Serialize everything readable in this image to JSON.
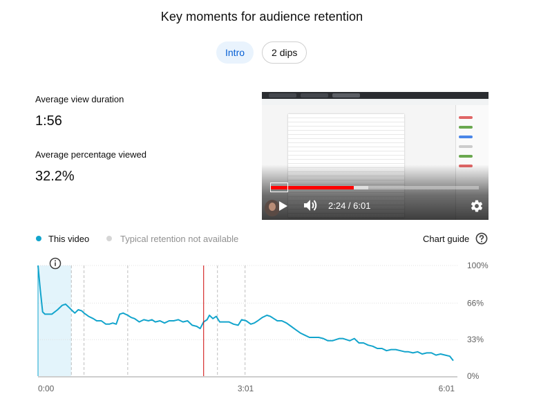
{
  "title": "Key moments for audience retention",
  "tabs": [
    {
      "label": "Intro",
      "active": true
    },
    {
      "label": "2 dips",
      "active": false
    }
  ],
  "metrics": [
    {
      "label": "Average view duration",
      "value": "1:56"
    },
    {
      "label": "Average percentage viewed",
      "value": "32.2%"
    }
  ],
  "video": {
    "time_display": "2:24 / 6:01",
    "progress_fraction": 0.4,
    "buffered_fraction": 0.47
  },
  "legend": {
    "this_video": "This video",
    "typical": "Typical retention not available",
    "this_video_color": "#12a4cc",
    "typical_color": "#d6d6d6"
  },
  "chart_guide": {
    "label": "Chart guide",
    "icon": "help-circle-icon"
  },
  "info_icon": "info-icon",
  "chart_data": {
    "type": "line",
    "xlabel": "",
    "ylabel": "",
    "x_ticks": [
      "0:00",
      "3:01",
      "6:01"
    ],
    "y_ticks": [
      "100%",
      "66%",
      "33%",
      "0%"
    ],
    "xlim": [
      0,
      361
    ],
    "ylim": [
      0,
      100
    ],
    "grid": true,
    "highlight_range_sec": [
      0,
      29
    ],
    "key_moment_markers_sec": [
      29,
      40,
      78,
      144,
      156,
      180
    ],
    "playhead_sec": 144,
    "series": [
      {
        "name": "This video",
        "color": "#12a4cc",
        "x": [
          0,
          2,
          4,
          6,
          9,
          12,
          17,
          21,
          24,
          27,
          30,
          32,
          35,
          38,
          40,
          44,
          48,
          51,
          55,
          59,
          62,
          65,
          68,
          71,
          74,
          76,
          78,
          81,
          84,
          88,
          92,
          96,
          99,
          102,
          106,
          110,
          114,
          118,
          122,
          126,
          130,
          134,
          138,
          141,
          144,
          147,
          149,
          152,
          155,
          158,
          162,
          166,
          170,
          174,
          177,
          181,
          185,
          188,
          191,
          195,
          199,
          202,
          205,
          208,
          212,
          216,
          220,
          224,
          228,
          232,
          236,
          240,
          244,
          248,
          252,
          256,
          259,
          262,
          265,
          268,
          271,
          275,
          279,
          283,
          287,
          291,
          295,
          299,
          303,
          307,
          311,
          315,
          319,
          322,
          326,
          330,
          334,
          338,
          342,
          346,
          350,
          354,
          358,
          361
        ],
        "y": [
          100,
          78,
          58,
          56,
          56,
          56,
          60,
          64,
          65,
          62,
          59,
          57,
          60,
          59,
          57,
          54,
          52,
          50,
          50,
          47,
          47,
          48,
          47,
          56,
          57,
          56,
          55,
          53,
          52,
          49,
          51,
          50,
          51,
          49,
          50,
          48,
          50,
          50,
          51,
          49,
          50,
          46,
          45,
          43,
          49,
          51,
          55,
          52,
          54,
          49,
          49,
          49,
          47,
          46,
          51,
          50,
          47,
          48,
          50,
          53,
          55,
          54,
          52,
          50,
          50,
          48,
          45,
          42,
          39,
          37,
          35,
          35,
          35,
          34,
          32,
          32,
          33,
          34,
          34,
          33,
          32,
          34,
          30,
          30,
          28,
          27,
          25,
          25,
          23,
          24,
          24,
          23,
          22,
          22,
          21,
          22,
          20,
          21,
          21,
          19,
          20,
          19,
          18,
          14
        ]
      }
    ]
  }
}
